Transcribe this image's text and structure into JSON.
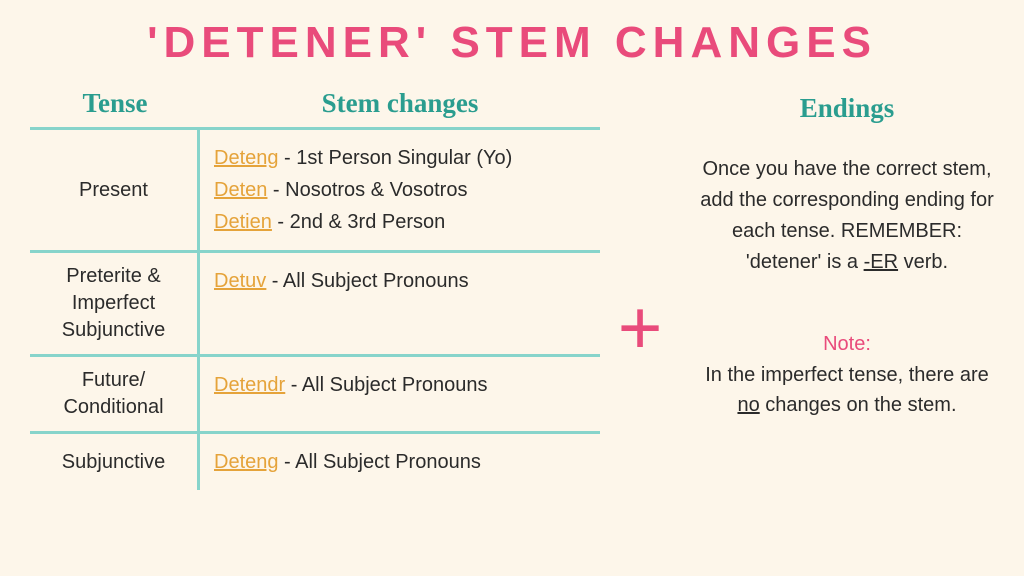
{
  "title": "'DETENER' STEM CHANGES",
  "colors": {
    "background": "#fdf6ea",
    "heading_pink": "#e94b7b",
    "teal": "#2a9d8f",
    "divider": "#87d4cb",
    "stem_gold": "#e5a33a",
    "text": "#2b2b2b"
  },
  "table": {
    "headers": {
      "tense": "Tense",
      "stem": "Stem changes"
    },
    "rows": [
      {
        "tense": "Present",
        "stems": [
          {
            "prefix": "Det",
            "ul": "eng",
            "rest": " - 1st Person Singular (Yo)"
          },
          {
            "prefix": "Det",
            "ul": "en",
            "rest": " -  Nosotros & Vosotros"
          },
          {
            "prefix": "Det",
            "ul": "ien",
            "rest": " - 2nd & 3rd Person"
          }
        ]
      },
      {
        "tense": "Preterite & Imperfect Subjunctive",
        "stems": [
          {
            "prefix": "",
            "ul": "Detuv",
            "rest": " - All Subject Pronouns"
          }
        ]
      },
      {
        "tense": "Future/ Conditional",
        "stems": [
          {
            "prefix": "",
            "ul": "Detendr",
            "rest": " - All Subject Pronouns"
          }
        ]
      },
      {
        "tense": "Subjunctive",
        "stems": [
          {
            "prefix": "Det",
            "ul": "eng",
            "rest": " - All Subject Pronouns"
          }
        ]
      }
    ]
  },
  "plus_symbol": "+",
  "endings": {
    "title": "Endings",
    "text_before": "Once you have the correct stem, add the corresponding ending for each tense. REMEMBER: 'detener' is a ",
    "text_ul": "-ER",
    "text_after": " verb."
  },
  "note": {
    "label": "Note:",
    "text_before": "In the imperfect tense, there are ",
    "text_ul": "no",
    "text_after": " changes on the stem."
  }
}
